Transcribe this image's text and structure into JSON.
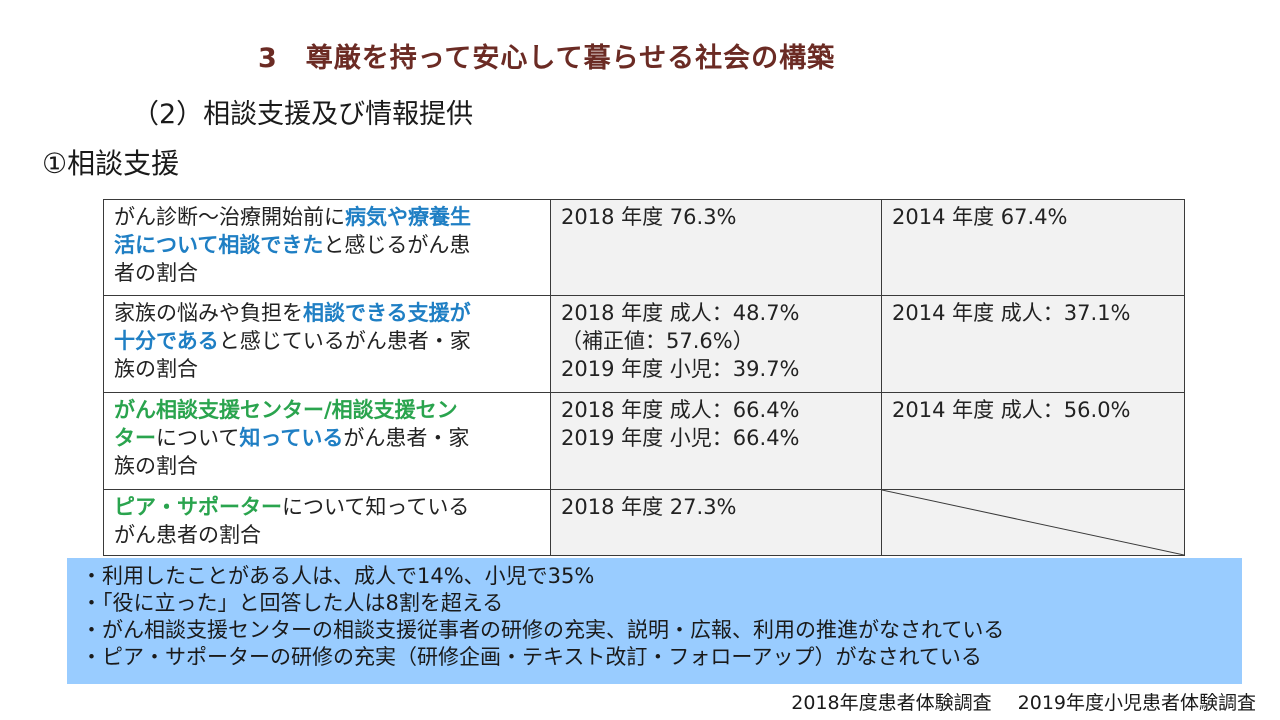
{
  "title": "3　尊厳を持って安心して暮らせる社会の構築",
  "subtitle": "（2）相談支援及び情報提供",
  "section": "①相談支援",
  "table": {
    "rows": [
      {
        "c1": [
          {
            "text": "がん診断～治療開始前に",
            "style": "normal"
          },
          {
            "text": "病気や療養生活について相談できた",
            "style": "blue"
          },
          {
            "text": "と感じるがん患者の割合",
            "style": "normal"
          }
        ],
        "c1_lines": [
          [
            {
              "text": "がん診断～治療開始前に",
              "style": "normal"
            },
            {
              "text": "病気や療養生",
              "style": "blue"
            }
          ],
          [
            {
              "text": "活について相談できた",
              "style": "blue"
            },
            {
              "text": "と感じるがん患",
              "style": "normal"
            }
          ],
          [
            {
              "text": "者の割合",
              "style": "normal"
            }
          ]
        ],
        "c2": [
          "2018 年度 76.3%"
        ],
        "c3": [
          "2014 年度 67.4%"
        ]
      },
      {
        "c1_lines": [
          [
            {
              "text": "家族の悩みや負担を",
              "style": "normal"
            },
            {
              "text": "相談できる支援が",
              "style": "blue"
            }
          ],
          [
            {
              "text": "十分である",
              "style": "blue"
            },
            {
              "text": "と感じているがん患者・家",
              "style": "normal"
            }
          ],
          [
            {
              "text": "族の割合",
              "style": "normal"
            }
          ]
        ],
        "c2": [
          "2018 年度 成人：48.7%",
          "（補正値：57.6%）",
          "2019 年度 小児：39.7%"
        ],
        "c3": [
          "2014 年度 成人：37.1%"
        ]
      },
      {
        "c1_lines": [
          [
            {
              "text": "がん相談支援センター/相談支援セン",
              "style": "green"
            }
          ],
          [
            {
              "text": "ター",
              "style": "green"
            },
            {
              "text": "について",
              "style": "normal"
            },
            {
              "text": "知っている",
              "style": "blue"
            },
            {
              "text": "がん患者・家",
              "style": "normal"
            }
          ],
          [
            {
              "text": "族の割合",
              "style": "normal"
            }
          ]
        ],
        "c2": [
          "2018 年度 成人：66.4%",
          "2019 年度 小児：66.4%"
        ],
        "c3": [
          "2014 年度 成人：56.0%"
        ]
      },
      {
        "c1_lines": [
          [
            {
              "text": "ピア・サポーター",
              "style": "green"
            },
            {
              "text": "について知っている",
              "style": "normal"
            }
          ],
          [
            {
              "text": "がん患者の割合",
              "style": "normal"
            }
          ]
        ],
        "c2": [
          "2018 年度 27.3%"
        ],
        "c3": []
      }
    ]
  },
  "notes": [
    "・利用したことがある人は、成人で14%、小児で35%",
    "・「役に立った」と回答した人は8割を超える",
    "・がん相談支援センターの相談支援従事者の研修の充実、説明・広報、利用の推進がなされている",
    "・ピア・サポーターの研修の充実（研修企画・テキスト改訂・フォローアップ）がなされている"
  ],
  "sources": [
    "2018年度患者体験調査",
    "2019年度小児患者体験調査"
  ],
  "colors": {
    "title": "#6b2b24",
    "highlight_blue": "#1f7fc4",
    "highlight_green": "#2aa44e",
    "note_bg": "#99ccff",
    "cell_gray": "#f2f2f2"
  }
}
